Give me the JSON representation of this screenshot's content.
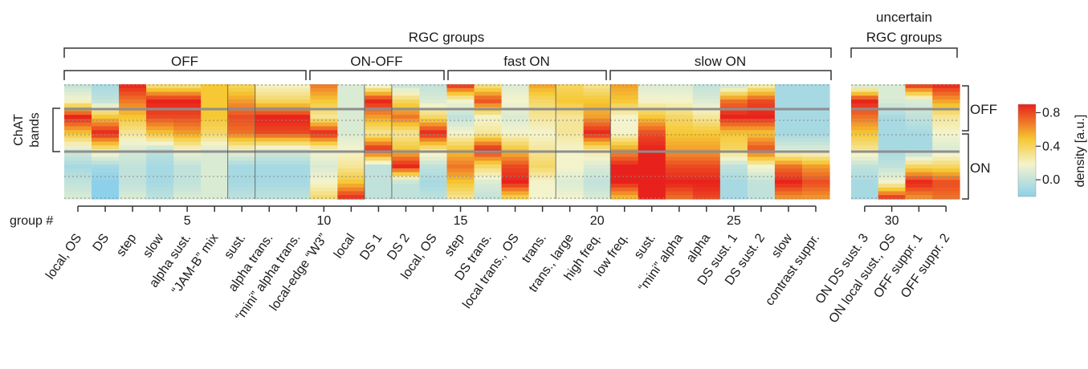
{
  "chart_data": {
    "type": "heatmap",
    "headers": {
      "main": "RGC groups",
      "uncertain_line1": "uncertain",
      "uncertain_line2": "RGC groups",
      "off": "OFF",
      "on_off": "ON-OFF",
      "fast_on": "fast ON",
      "slow_on": "slow ON"
    },
    "ylabel_line1": "ChAT",
    "ylabel_line2": "bands",
    "band_off": "OFF",
    "band_on": "ON",
    "group_label": "group #",
    "tick_labels": [
      "5",
      "10",
      "15",
      "20",
      "25",
      "30"
    ],
    "colorbar": {
      "label": "density [a.u.]",
      "ticks": [
        "0.8",
        "0.4",
        "0.0"
      ],
      "range": [
        -0.2,
        0.9
      ]
    },
    "colors": {
      "low": "#8dd0ea",
      "mid": "#f4f4cc",
      "high": "#f6c833",
      "max": "#e8211c"
    },
    "groups": [
      {
        "n": 1,
        "name": "local, OS",
        "profile": [
          0.0,
          0.2,
          0.9,
          0.5,
          0.1,
          -0.1,
          0.0,
          0.1
        ]
      },
      {
        "n": 2,
        "name": "DS",
        "profile": [
          -0.1,
          0.0,
          0.5,
          0.9,
          0.3,
          -0.1,
          -0.2,
          -0.2
        ]
      },
      {
        "n": 3,
        "name": "step",
        "profile": [
          0.9,
          0.7,
          0.5,
          0.3,
          0.1,
          0.0,
          0.0,
          0.1
        ]
      },
      {
        "n": 4,
        "name": "slow",
        "profile": [
          0.3,
          0.9,
          0.8,
          0.5,
          0.0,
          -0.1,
          -0.1,
          0.0
        ]
      },
      {
        "n": 5,
        "name": "alpha sust.",
        "profile": [
          0.3,
          0.9,
          0.8,
          0.6,
          0.2,
          0.0,
          0.0,
          0.1
        ]
      },
      {
        "n": 6,
        "name": "“JAM-B” mix",
        "profile": [
          0.5,
          0.5,
          0.5,
          0.4,
          0.1,
          0.1,
          0.1,
          0.1
        ]
      },
      {
        "n": 7,
        "name": "sust.",
        "profile": [
          0.4,
          0.6,
          0.8,
          0.7,
          0.2,
          -0.1,
          -0.1,
          0.0
        ]
      },
      {
        "n": 8,
        "name": "alpha trans.",
        "profile": [
          0.2,
          0.4,
          0.9,
          0.8,
          0.1,
          -0.1,
          -0.1,
          0.0
        ]
      },
      {
        "n": 9,
        "name": "“mini” alpha trans.",
        "profile": [
          0.2,
          0.4,
          0.9,
          0.8,
          0.1,
          -0.1,
          -0.1,
          0.0
        ]
      },
      {
        "n": 10,
        "name": "local-edge “W3”",
        "profile": [
          0.7,
          0.5,
          0.3,
          0.9,
          0.2,
          0.1,
          0.2,
          0.4
        ]
      },
      {
        "n": 11,
        "name": "local",
        "profile": [
          0.1,
          0.1,
          0.1,
          0.1,
          0.2,
          0.3,
          0.5,
          0.9
        ]
      },
      {
        "n": 12,
        "name": "DS 1",
        "profile": [
          0.1,
          0.9,
          0.6,
          0.3,
          0.9,
          0.0,
          0.0,
          0.0
        ]
      },
      {
        "n": 13,
        "name": "DS 2",
        "profile": [
          0.0,
          0.4,
          0.7,
          0.3,
          0.5,
          0.9,
          0.0,
          0.0
        ]
      },
      {
        "n": 14,
        "name": "local, OS",
        "profile": [
          0.0,
          0.1,
          0.4,
          0.9,
          0.3,
          0.0,
          -0.1,
          0.0
        ]
      },
      {
        "n": 15,
        "name": "step",
        "profile": [
          0.9,
          0.2,
          0.0,
          0.2,
          0.5,
          0.7,
          0.5,
          0.3
        ]
      },
      {
        "n": 16,
        "name": "DS trans.",
        "profile": [
          0.3,
          0.8,
          0.2,
          0.3,
          0.9,
          0.4,
          0.1,
          0.0
        ]
      },
      {
        "n": 17,
        "name": "local trans., OS",
        "profile": [
          0.1,
          0.2,
          0.1,
          0.2,
          0.5,
          0.8,
          0.9,
          0.4
        ]
      },
      {
        "n": 18,
        "name": "trans.",
        "profile": [
          0.6,
          0.4,
          0.3,
          0.2,
          0.3,
          0.4,
          0.2,
          0.2
        ]
      },
      {
        "n": 19,
        "name": "trans., large",
        "profile": [
          0.4,
          0.5,
          0.3,
          0.3,
          0.2,
          0.2,
          0.1,
          0.2
        ]
      },
      {
        "n": 20,
        "name": "high freq.",
        "profile": [
          0.3,
          0.5,
          0.6,
          0.9,
          0.3,
          0.1,
          0.0,
          0.1
        ]
      },
      {
        "n": 21,
        "name": "low freq.",
        "profile": [
          0.6,
          0.5,
          0.2,
          0.2,
          0.6,
          0.9,
          0.9,
          0.5
        ]
      },
      {
        "n": 22,
        "name": "sust.",
        "profile": [
          0.1,
          0.2,
          0.5,
          0.8,
          0.9,
          0.9,
          0.9,
          0.9
        ]
      },
      {
        "n": 23,
        "name": "“mini” alpha",
        "profile": [
          0.1,
          0.2,
          0.4,
          0.5,
          0.6,
          0.8,
          0.9,
          0.7
        ]
      },
      {
        "n": 24,
        "name": "alpha",
        "profile": [
          0.0,
          0.1,
          0.3,
          0.5,
          0.6,
          0.8,
          0.9,
          0.8
        ]
      },
      {
        "n": 25,
        "name": "DS sust. 1",
        "profile": [
          0.0,
          0.7,
          0.9,
          0.5,
          0.4,
          0.0,
          -0.1,
          -0.1
        ]
      },
      {
        "n": 26,
        "name": "DS sust. 2",
        "profile": [
          0.2,
          0.8,
          0.9,
          0.5,
          0.8,
          0.2,
          0.0,
          0.0
        ]
      },
      {
        "n": 27,
        "name": "slow",
        "profile": [
          -0.1,
          -0.1,
          -0.1,
          -0.1,
          0.1,
          0.7,
          0.9,
          0.6
        ]
      },
      {
        "n": 28,
        "name": "contrast suppr.",
        "profile": [
          -0.1,
          -0.1,
          -0.1,
          -0.1,
          0.1,
          0.6,
          0.8,
          0.6
        ]
      },
      {
        "n": 29,
        "name": "ON DS sust. 3",
        "profile": [
          0.0,
          0.9,
          0.7,
          0.5,
          0.3,
          0.0,
          -0.1,
          -0.1
        ]
      },
      {
        "n": 30,
        "name": "ON local sust., OS",
        "profile": [
          0.1,
          0.1,
          -0.1,
          -0.1,
          -0.1,
          0.0,
          0.2,
          0.9
        ]
      },
      {
        "n": 31,
        "name": "OFF suppr. 1",
        "profile": [
          0.9,
          0.1,
          0.0,
          -0.1,
          -0.1,
          0.4,
          0.9,
          0.6
        ]
      },
      {
        "n": 32,
        "name": "OFF suppr. 2",
        "profile": [
          0.9,
          0.6,
          0.3,
          0.2,
          0.1,
          0.4,
          0.8,
          0.7
        ]
      }
    ]
  }
}
